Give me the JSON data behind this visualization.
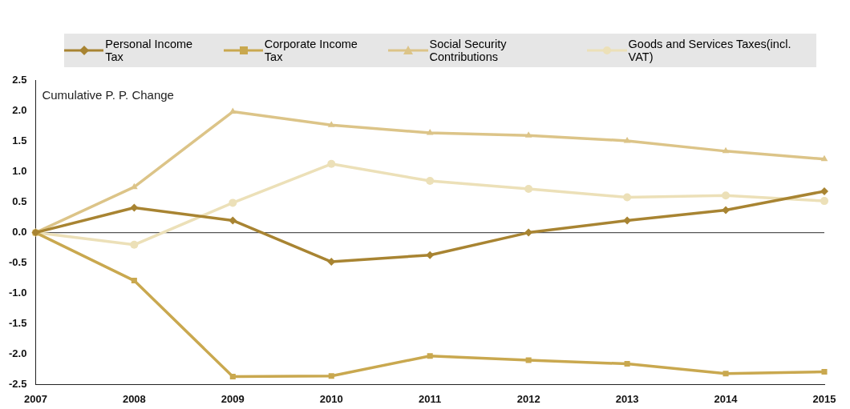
{
  "chart_data": {
    "type": "line",
    "ylabel": "Cumulative P. P. Change",
    "categories": [
      "2007",
      "2008",
      "2009",
      "2010",
      "2011",
      "2012",
      "2013",
      "2014",
      "2015"
    ],
    "ylim": [
      -2.5,
      2.5
    ],
    "yticks": [
      {
        "value": -2.5,
        "label": "-2.5"
      },
      {
        "value": -2,
        "label": "-2.0"
      },
      {
        "value": -1.5,
        "label": "-1.5"
      },
      {
        "value": -1,
        "label": "-1.0"
      },
      {
        "value": -0.5,
        "label": "-0.5"
      },
      {
        "value": 0,
        "label": "0.0"
      },
      {
        "value": 0.5,
        "label": "0.5"
      },
      {
        "value": 1,
        "label": "1.0"
      },
      {
        "value": 1.5,
        "label": "1.5"
      },
      {
        "value": 2,
        "label": "2.0"
      },
      {
        "value": 2.5,
        "label": "2.5"
      }
    ],
    "grid": false,
    "legend": "top",
    "line_style": "solid",
    "ref_lines": [
      {
        "axis": "y",
        "value": 0,
        "color": "#555555"
      }
    ],
    "series": [
      {
        "name": "Personal Income Tax",
        "color": "#a88432",
        "marker": "diamond",
        "values": [
          0,
          0.41,
          0.2,
          -0.48,
          -0.37,
          0,
          0.2,
          0.37,
          0.68
        ]
      },
      {
        "name": "Corporate Income Tax",
        "color": "#c9a84f",
        "marker": "square",
        "values": [
          0,
          -0.79,
          -2.37,
          -2.36,
          -2.03,
          -2.1,
          -2.16,
          -2.32,
          -2.29
        ]
      },
      {
        "name": "Social Security Contributions",
        "color": "#dcc488",
        "marker": "triangle",
        "values": [
          0,
          0.75,
          1.99,
          1.77,
          1.64,
          1.6,
          1.51,
          1.34,
          1.21
        ]
      },
      {
        "name": "Goods and Services Taxes(incl. VAT)",
        "color": "#ece0b8",
        "marker": "circle",
        "values": [
          0,
          -0.2,
          0.49,
          1.13,
          0.85,
          0.72,
          0.58,
          0.61,
          0.52
        ]
      }
    ]
  }
}
